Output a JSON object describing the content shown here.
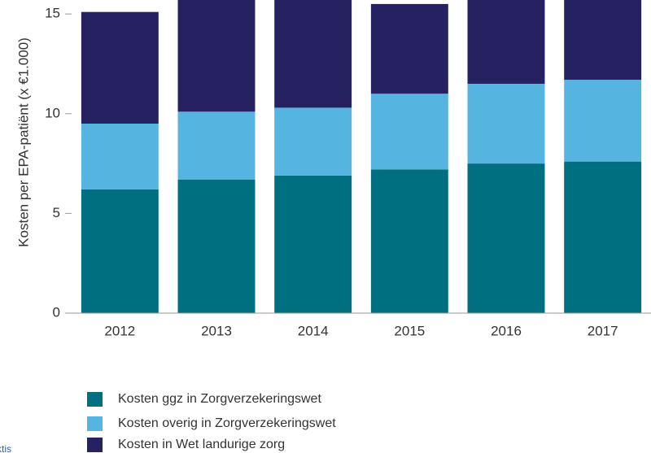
{
  "chart_data": {
    "type": "stacked_bar",
    "y_axis_label": "Kosten per EPA-patiënt (x €1.000)",
    "categories": [
      "2012",
      "2013",
      "2014",
      "2015",
      "2016",
      "2017"
    ],
    "series": [
      {
        "name": "Kosten ggz in Zorgverzekeringswet",
        "color": "#007080",
        "values": [
          6.2,
          6.7,
          6.9,
          7.2,
          7.5,
          7.6
        ]
      },
      {
        "name": "Kosten overig in Zorgverzekeringswet",
        "color": "#56b5e0",
        "values": [
          3.3,
          3.4,
          3.4,
          3.8,
          4.0,
          4.1
        ]
      },
      {
        "name": "Kosten in Wet landurige zorg",
        "color": "#262262",
        "values": [
          5.6,
          6.0,
          6.0,
          4.5,
          4.2,
          4.2
        ]
      }
    ],
    "ylim": [
      0,
      15.7
    ],
    "yticks": [
      0,
      5,
      10,
      15
    ],
    "footer_fragment": "ktis"
  }
}
